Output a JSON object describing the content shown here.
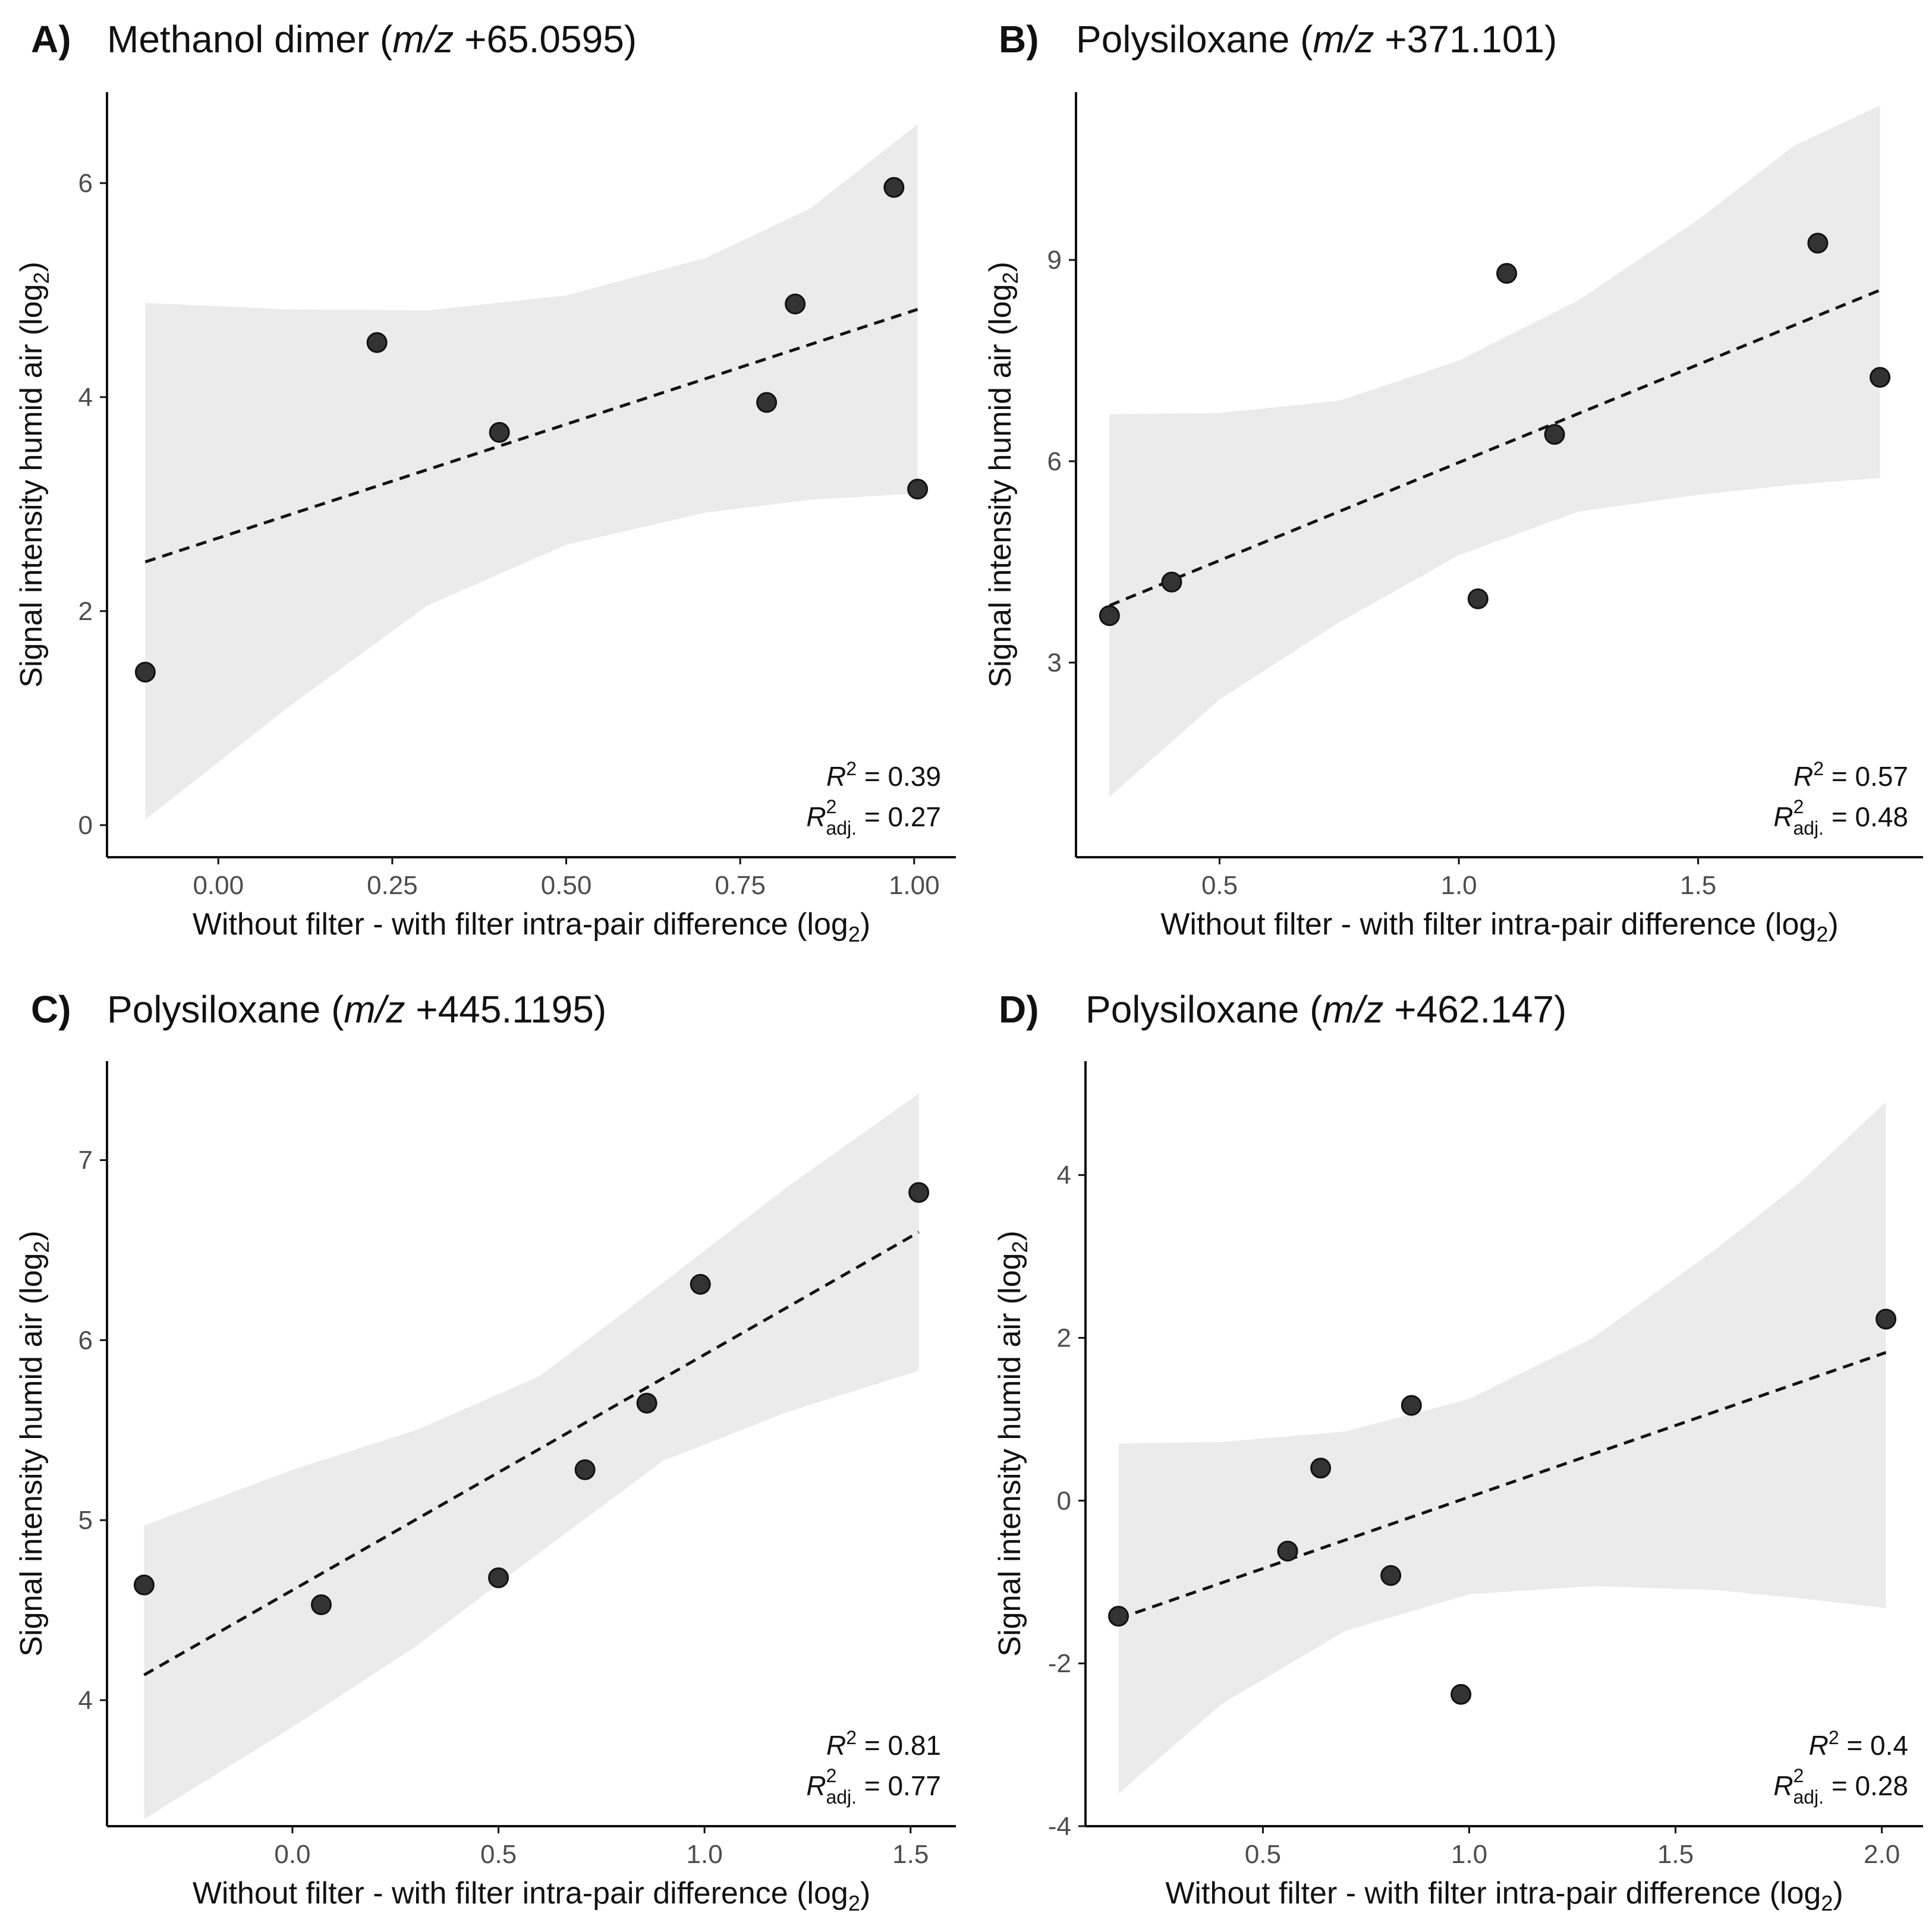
{
  "figure": {
    "x_axis_title": "Without filter - with filter intra-pair difference (log",
    "y_axis_title": "Signal intensity humid air (log",
    "log_subscript": "2",
    "closing_paren": ")"
  },
  "colors": {
    "point_fill": "#333333",
    "point_stroke": "#111111",
    "ribbon": "#ebebeb",
    "fit_line": "#111111",
    "axis": "#111111"
  },
  "chart_data": [
    {
      "type": "scatter",
      "panel": "A)",
      "title": "Methanol dimer",
      "title_mz": "m/z",
      "title_value": "+65.0595",
      "xlabel": "Without filter - with filter intra-pair difference (log2)",
      "ylabel": "Signal intensity humid air (log2)",
      "xlim": [
        -0.16,
        1.06
      ],
      "ylim": [
        -0.3,
        6.85
      ],
      "xticks": [
        0.0,
        0.25,
        0.5,
        0.75,
        1.0
      ],
      "xtick_labels": [
        "0.00",
        "0.25",
        "0.50",
        "0.75",
        "1.00"
      ],
      "yticks": [
        0,
        2,
        4,
        6
      ],
      "ytick_labels": [
        "0",
        "2",
        "4",
        "6"
      ],
      "x": [
        -0.105,
        0.228,
        0.404,
        0.788,
        0.829,
        0.971,
        1.005
      ],
      "y": [
        1.43,
        4.51,
        3.67,
        3.95,
        4.87,
        5.96,
        3.14
      ],
      "fit": {
        "x": [
          -0.105,
          1.005
        ],
        "y": [
          2.46,
          4.82
        ]
      },
      "ribbon": {
        "x": [
          -0.105,
          0.1,
          0.3,
          0.5,
          0.7,
          0.85,
          1.005
        ],
        "lower": [
          0.05,
          1.1,
          2.05,
          2.62,
          2.92,
          3.04,
          3.1
        ],
        "upper": [
          4.88,
          4.82,
          4.81,
          4.95,
          5.3,
          5.76,
          6.55
        ]
      },
      "r2_label": "R",
      "r2_sup": "2",
      "r2_value": " = 0.39",
      "r2adj_label": "R",
      "r2adj_sub": "adj.",
      "r2adj_sup": "2",
      "r2adj_value": " = 0.27"
    },
    {
      "type": "scatter",
      "panel": "B)",
      "title": "Polysiloxane",
      "title_mz": "m/z",
      "title_value": "+371.101",
      "xlabel": "Without filter - with filter intra-pair difference (log2)",
      "ylabel": "Signal intensity humid air (log2)",
      "xlim": [
        0.2,
        1.97
      ],
      "ylim": [
        0.1,
        11.5
      ],
      "xticks": [
        0.5,
        1.0,
        1.5
      ],
      "xtick_labels": [
        "0.5",
        "1.0",
        "1.5"
      ],
      "yticks": [
        3,
        6,
        9
      ],
      "ytick_labels": [
        "3",
        "6",
        "9"
      ],
      "x": [
        0.27,
        0.4,
        1.04,
        1.1,
        1.2,
        1.75,
        1.88
      ],
      "y": [
        3.7,
        4.2,
        3.95,
        8.8,
        6.4,
        9.25,
        7.25
      ],
      "fit": {
        "x": [
          0.27,
          1.88
        ],
        "y": [
          3.85,
          8.55
        ]
      },
      "ribbon": {
        "x": [
          0.27,
          0.5,
          0.75,
          1.0,
          1.25,
          1.5,
          1.7,
          1.88
        ],
        "lower": [
          1.0,
          2.45,
          3.6,
          4.6,
          5.25,
          5.5,
          5.65,
          5.75
        ],
        "upper": [
          6.7,
          6.72,
          6.9,
          7.5,
          8.4,
          9.6,
          10.7,
          11.3
        ]
      },
      "r2_label": "R",
      "r2_sup": "2",
      "r2_value": " = 0.57",
      "r2adj_label": "R",
      "r2adj_sub": "adj.",
      "r2adj_sup": "2",
      "r2adj_value": " = 0.48"
    },
    {
      "type": "scatter",
      "panel": "C)",
      "title": "Polysiloxane",
      "title_mz": "m/z",
      "title_value": "+445.1195",
      "xlabel": "Without filter - with filter intra-pair difference (log2)",
      "ylabel": "Signal intensity humid air (log2)",
      "xlim": [
        -0.45,
        1.61
      ],
      "ylim": [
        3.3,
        7.55
      ],
      "xticks": [
        0.0,
        0.5,
        1.0,
        1.5
      ],
      "xtick_labels": [
        "0.0",
        "0.5",
        "1.0",
        "1.5"
      ],
      "yticks": [
        4,
        5,
        6,
        7
      ],
      "ytick_labels": [
        "4",
        "5",
        "6",
        "7"
      ],
      "x": [
        -0.36,
        0.07,
        0.5,
        0.71,
        0.86,
        0.99,
        1.52
      ],
      "y": [
        4.64,
        4.53,
        4.68,
        5.28,
        5.65,
        6.31,
        6.82
      ],
      "fit": {
        "x": [
          -0.36,
          1.52
        ],
        "y": [
          4.14,
          6.6
        ]
      },
      "ribbon": {
        "x": [
          -0.36,
          0.0,
          0.3,
          0.6,
          0.9,
          1.2,
          1.52
        ],
        "lower": [
          3.34,
          3.85,
          4.3,
          4.82,
          5.33,
          5.6,
          5.83
        ],
        "upper": [
          4.97,
          5.28,
          5.5,
          5.8,
          6.32,
          6.85,
          7.37
        ]
      },
      "r2_label": "R",
      "r2_sup": "2",
      "r2_value": " = 0.81",
      "r2adj_label": "R",
      "r2adj_sub": "adj.",
      "r2adj_sup": "2",
      "r2adj_value": " = 0.77"
    },
    {
      "type": "scatter",
      "panel": "D)",
      "title": "Polysiloxane",
      "title_mz": "m/z",
      "title_value": "+462.147",
      "xlabel": "Without filter - with filter intra-pair difference (log2)",
      "ylabel": "Signal intensity humid air (log2)",
      "xlim": [
        0.07,
        2.1
      ],
      "ylim": [
        -4.0,
        5.4
      ],
      "xticks": [
        0.5,
        1.0,
        1.5,
        2.0
      ],
      "xtick_labels": [
        "0.5",
        "1.0",
        "1.5",
        "2.0"
      ],
      "yticks": [
        -4,
        -2,
        0,
        2,
        4
      ],
      "ytick_labels": [
        "-4",
        "-2",
        "0",
        "2",
        "4"
      ],
      "x": [
        0.15,
        0.56,
        0.64,
        0.81,
        0.86,
        0.98,
        2.01
      ],
      "y": [
        -1.42,
        -0.62,
        0.4,
        -0.92,
        1.17,
        -2.38,
        2.23
      ],
      "fit": {
        "x": [
          0.15,
          2.01
        ],
        "y": [
          -1.45,
          1.82
        ]
      },
      "ribbon": {
        "x": [
          0.15,
          0.4,
          0.7,
          1.0,
          1.3,
          1.6,
          1.8,
          2.01
        ],
        "lower": [
          -3.6,
          -2.5,
          -1.6,
          -1.15,
          -1.05,
          -1.1,
          -1.2,
          -1.32
        ],
        "upper": [
          0.7,
          0.72,
          0.85,
          1.25,
          2.0,
          3.1,
          3.9,
          4.9
        ]
      },
      "r2_label": "R",
      "r2_sup": "2",
      "r2_value": " = 0.4",
      "r2adj_label": "R",
      "r2adj_sub": "adj.",
      "r2adj_sup": "2",
      "r2adj_value": " = 0.28"
    }
  ]
}
